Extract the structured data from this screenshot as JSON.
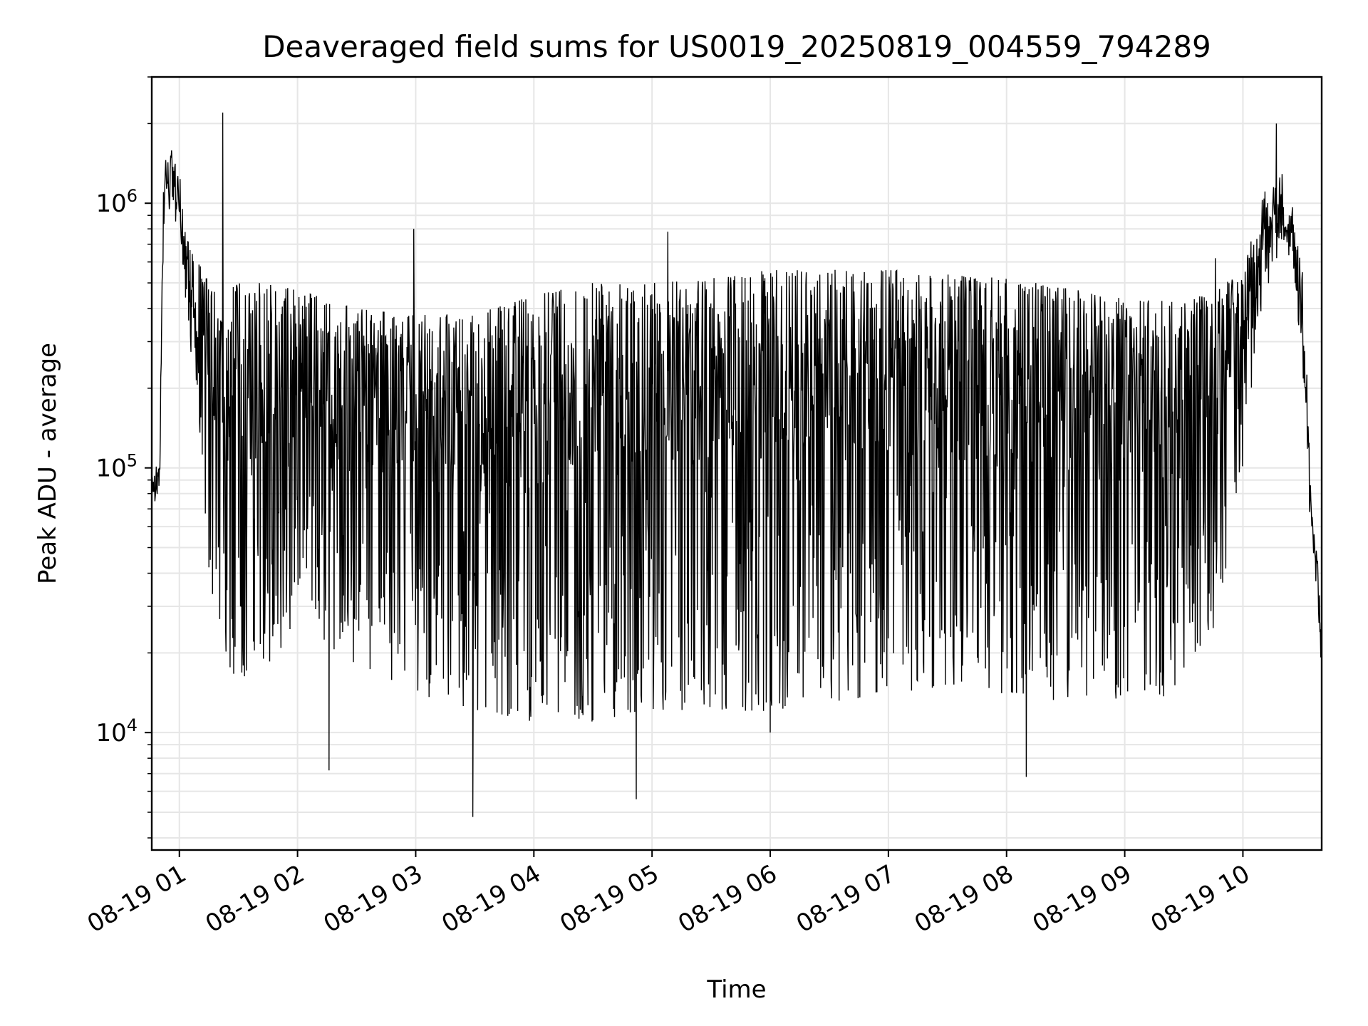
{
  "chart_data": {
    "type": "line",
    "title": "Deaveraged field sums for US0019_20250819_004559_794289",
    "xlabel": "Time",
    "ylabel": "Peak ADU - average",
    "yscale": "log",
    "ylim": [
      3600,
      3000000
    ],
    "xlim": [
      "2025-08-19 00:45:59",
      "2025-08-19 10:40:00"
    ],
    "grid": true,
    "line_color": "#000000",
    "x_ticks": [
      {
        "x": "2025-08-19 01:00",
        "label": "08-19 01"
      },
      {
        "x": "2025-08-19 02:00",
        "label": "08-19 02"
      },
      {
        "x": "2025-08-19 03:00",
        "label": "08-19 03"
      },
      {
        "x": "2025-08-19 04:00",
        "label": "08-19 04"
      },
      {
        "x": "2025-08-19 05:00",
        "label": "08-19 05"
      },
      {
        "x": "2025-08-19 06:00",
        "label": "08-19 06"
      },
      {
        "x": "2025-08-19 07:00",
        "label": "08-19 07"
      },
      {
        "x": "2025-08-19 08:00",
        "label": "08-19 08"
      },
      {
        "x": "2025-08-19 09:00",
        "label": "08-19 09"
      },
      {
        "x": "2025-08-19 10:00",
        "label": "08-19 10"
      }
    ],
    "y_ticks": [
      {
        "value": 10000,
        "base": "10",
        "exp": "4"
      },
      {
        "value": 100000,
        "base": "10",
        "exp": "5"
      },
      {
        "value": 1000000,
        "base": "10",
        "exp": "6"
      }
    ],
    "envelope": [
      {
        "t": "2025-08-19 00:46",
        "low": 70000,
        "high": 95000
      },
      {
        "t": "2025-08-19 00:50",
        "low": 80000,
        "high": 110000
      },
      {
        "t": "2025-08-19 00:52",
        "low": 700000,
        "high": 1500000
      },
      {
        "t": "2025-08-19 00:56",
        "low": 1000000,
        "high": 1600000
      },
      {
        "t": "2025-08-19 01:00",
        "low": 700000,
        "high": 1300000
      },
      {
        "t": "2025-08-19 01:05",
        "low": 300000,
        "high": 800000
      },
      {
        "t": "2025-08-19 01:10",
        "low": 150000,
        "high": 600000
      },
      {
        "t": "2025-08-19 01:15",
        "low": 40000,
        "high": 500000
      },
      {
        "t": "2025-08-19 01:20",
        "low": 22000,
        "high": 450000
      },
      {
        "t": "2025-08-19 01:30",
        "low": 15000,
        "high": 500000
      },
      {
        "t": "2025-08-19 01:45",
        "low": 18000,
        "high": 500000
      },
      {
        "t": "2025-08-19 02:00",
        "low": 25000,
        "high": 470000
      },
      {
        "t": "2025-08-19 02:30",
        "low": 18000,
        "high": 400000
      },
      {
        "t": "2025-08-19 03:00",
        "low": 14000,
        "high": 380000
      },
      {
        "t": "2025-08-19 03:30",
        "low": 12000,
        "high": 380000
      },
      {
        "t": "2025-08-19 04:00",
        "low": 11000,
        "high": 450000
      },
      {
        "t": "2025-08-19 04:30",
        "low": 11000,
        "high": 500000
      },
      {
        "t": "2025-08-19 05:00",
        "low": 12000,
        "high": 500000
      },
      {
        "t": "2025-08-19 05:30",
        "low": 12000,
        "high": 520000
      },
      {
        "t": "2025-08-19 06:00",
        "low": 12000,
        "high": 560000
      },
      {
        "t": "2025-08-19 06:30",
        "low": 13000,
        "high": 560000
      },
      {
        "t": "2025-08-19 07:00",
        "low": 14000,
        "high": 560000
      },
      {
        "t": "2025-08-19 07:30",
        "low": 15000,
        "high": 540000
      },
      {
        "t": "2025-08-19 08:00",
        "low": 14000,
        "high": 520000
      },
      {
        "t": "2025-08-19 08:30",
        "low": 13000,
        "high": 480000
      },
      {
        "t": "2025-08-19 09:00",
        "low": 13000,
        "high": 440000
      },
      {
        "t": "2025-08-19 09:30",
        "low": 14000,
        "high": 420000
      },
      {
        "t": "2025-08-19 09:50",
        "low": 30000,
        "high": 500000
      },
      {
        "t": "2025-08-19 10:00",
        "low": 100000,
        "high": 550000
      },
      {
        "t": "2025-08-19 10:10",
        "low": 400000,
        "high": 1100000
      },
      {
        "t": "2025-08-19 10:20",
        "low": 700000,
        "high": 1300000
      },
      {
        "t": "2025-08-19 10:25",
        "low": 600000,
        "high": 1000000
      },
      {
        "t": "2025-08-19 10:30",
        "low": 250000,
        "high": 600000
      },
      {
        "t": "2025-08-19 10:33",
        "low": 70000,
        "high": 200000
      },
      {
        "t": "2025-08-19 10:35",
        "low": 55000,
        "high": 70000
      },
      {
        "t": "2025-08-19 10:38",
        "low": 30000,
        "high": 45000
      },
      {
        "t": "2025-08-19 10:40",
        "low": 13000,
        "high": 25000
      }
    ],
    "spikes": [
      {
        "t": "2025-08-19 01:22",
        "value": 2200000
      },
      {
        "t": "2025-08-19 10:17",
        "value": 2000000
      },
      {
        "t": "2025-08-19 03:29",
        "value": 4800
      },
      {
        "t": "2025-08-19 04:52",
        "value": 5600
      },
      {
        "t": "2025-08-19 08:10",
        "value": 6800
      },
      {
        "t": "2025-08-19 02:16",
        "value": 7200
      },
      {
        "t": "2025-08-19 06:00",
        "value": 10000
      },
      {
        "t": "2025-08-19 02:59",
        "value": 800000
      },
      {
        "t": "2025-08-19 05:08",
        "value": 780000
      },
      {
        "t": "2025-08-19 09:46",
        "value": 620000
      }
    ]
  }
}
